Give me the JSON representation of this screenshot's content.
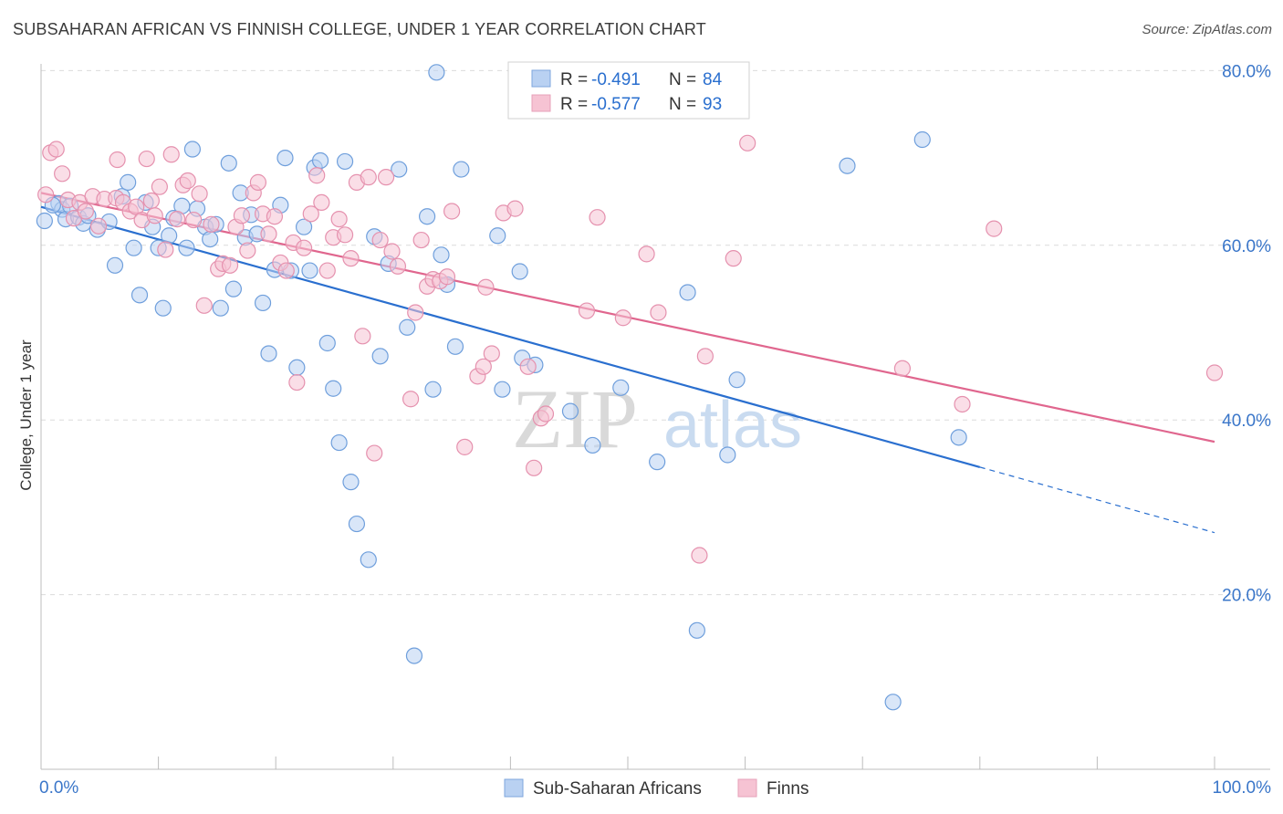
{
  "title": "SUBSAHARAN AFRICAN VS FINNISH COLLEGE, UNDER 1 YEAR CORRELATION CHART",
  "source": "Source: ZipAtlas.com",
  "watermark": {
    "zip": "ZIP",
    "atlas": "atlas"
  },
  "colors": {
    "blue": "#2a6fcf",
    "blue_fill": "#b9d1f2",
    "pink": "#e0668e",
    "pink_fill": "#f6c3d3",
    "tick_label": "#3a76c9",
    "grid": "#dcdcdc"
  },
  "legend_top": {
    "rows": [
      {
        "r_label": "R = ",
        "r_value": "-0.491",
        "n_label": "N = ",
        "n_value": "84",
        "series": "Sub-Saharan Africans"
      },
      {
        "r_label": "R = ",
        "r_value": "-0.577",
        "n_label": "N = ",
        "n_value": "93",
        "series": "Finns"
      }
    ]
  },
  "legend_bottom": [
    "Sub-Saharan Africans",
    "Finns"
  ],
  "chart_data": {
    "type": "scatter",
    "title": "SUBSAHARAN AFRICAN VS FINNISH COLLEGE, UNDER 1 YEAR CORRELATION CHART",
    "xlabel": "",
    "ylabel": "College, Under 1 year",
    "xlim": [
      0,
      100
    ],
    "ylim": [
      0,
      83
    ],
    "x_tick_labels": [
      "0.0%",
      "100.0%"
    ],
    "y_ticks": [
      20,
      40,
      60,
      80
    ],
    "y_tick_labels": [
      "20.0%",
      "40.0%",
      "60.0%",
      "80.0%"
    ],
    "grid": true,
    "series": [
      {
        "name": "Sub-Saharan Africans",
        "r": -0.491,
        "n": 84,
        "trend": {
          "x0": 0,
          "y0": 64.4,
          "x1": 80,
          "y1": 34.6,
          "dash_to_x": 100,
          "dash_to_y": 27.1
        },
        "points": [
          [
            0.3,
            62.8
          ],
          [
            1.5,
            64.8
          ],
          [
            1.8,
            64.1
          ],
          [
            2.1,
            63.0
          ],
          [
            2.5,
            64.5
          ],
          [
            3.2,
            63.2
          ],
          [
            3.6,
            62.5
          ],
          [
            4.0,
            63.4
          ],
          [
            4.8,
            61.8
          ],
          [
            5.8,
            62.7
          ],
          [
            6.3,
            57.7
          ],
          [
            6.9,
            65.6
          ],
          [
            7.4,
            67.2
          ],
          [
            7.9,
            59.7
          ],
          [
            8.4,
            54.3
          ],
          [
            8.9,
            64.9
          ],
          [
            9.5,
            62.1
          ],
          [
            10.0,
            59.7
          ],
          [
            10.4,
            52.8
          ],
          [
            10.9,
            61.1
          ],
          [
            11.3,
            63.1
          ],
          [
            12.0,
            64.5
          ],
          [
            12.4,
            59.7
          ],
          [
            12.9,
            71.0
          ],
          [
            13.3,
            64.2
          ],
          [
            14.0,
            62.1
          ],
          [
            14.4,
            60.7
          ],
          [
            14.9,
            62.4
          ],
          [
            15.3,
            52.8
          ],
          [
            16.0,
            69.4
          ],
          [
            16.4,
            55.0
          ],
          [
            17.0,
            66.0
          ],
          [
            17.4,
            60.9
          ],
          [
            17.9,
            63.5
          ],
          [
            18.4,
            61.3
          ],
          [
            18.9,
            53.4
          ],
          [
            19.4,
            47.6
          ],
          [
            19.9,
            57.2
          ],
          [
            20.4,
            64.6
          ],
          [
            20.8,
            70.0
          ],
          [
            21.3,
            57.1
          ],
          [
            21.8,
            46.0
          ],
          [
            22.4,
            62.1
          ],
          [
            22.9,
            57.1
          ],
          [
            23.3,
            68.9
          ],
          [
            23.8,
            69.7
          ],
          [
            24.4,
            48.8
          ],
          [
            24.9,
            43.6
          ],
          [
            25.4,
            37.4
          ],
          [
            25.9,
            69.6
          ],
          [
            26.4,
            32.9
          ],
          [
            26.9,
            28.1
          ],
          [
            27.9,
            24.0
          ],
          [
            28.4,
            61.0
          ],
          [
            28.9,
            47.3
          ],
          [
            29.6,
            57.9
          ],
          [
            30.5,
            68.7
          ],
          [
            31.2,
            50.6
          ],
          [
            31.8,
            13.0
          ],
          [
            32.9,
            63.3
          ],
          [
            33.4,
            43.5
          ],
          [
            33.7,
            79.8
          ],
          [
            34.1,
            58.9
          ],
          [
            34.6,
            55.5
          ],
          [
            35.3,
            48.4
          ],
          [
            35.8,
            68.7
          ],
          [
            38.9,
            61.1
          ],
          [
            39.3,
            43.5
          ],
          [
            40.8,
            57.0
          ],
          [
            41.0,
            47.1
          ],
          [
            42.1,
            46.3
          ],
          [
            45.1,
            41.0
          ],
          [
            47.0,
            37.1
          ],
          [
            49.4,
            43.7
          ],
          [
            52.5,
            35.2
          ],
          [
            55.1,
            54.6
          ],
          [
            55.9,
            15.9
          ],
          [
            58.5,
            36.0
          ],
          [
            59.3,
            44.6
          ],
          [
            68.7,
            69.1
          ],
          [
            72.6,
            7.7
          ],
          [
            75.1,
            72.1
          ],
          [
            78.2,
            38.0
          ],
          [
            1.0,
            64.6
          ]
        ]
      },
      {
        "name": "Finns",
        "r": -0.577,
        "n": 93,
        "trend": {
          "x0": 0,
          "y0": 66.0,
          "x1": 100,
          "y1": 37.5
        },
        "points": [
          [
            0.4,
            65.8
          ],
          [
            0.8,
            70.6
          ],
          [
            1.3,
            71.0
          ],
          [
            1.8,
            68.2
          ],
          [
            2.3,
            65.2
          ],
          [
            2.8,
            63.1
          ],
          [
            3.3,
            64.9
          ],
          [
            3.8,
            63.9
          ],
          [
            4.4,
            65.6
          ],
          [
            4.9,
            62.2
          ],
          [
            5.4,
            65.3
          ],
          [
            6.4,
            65.4
          ],
          [
            6.5,
            69.8
          ],
          [
            7.0,
            64.9
          ],
          [
            7.6,
            63.9
          ],
          [
            8.1,
            64.4
          ],
          [
            8.6,
            62.9
          ],
          [
            9.0,
            69.9
          ],
          [
            9.4,
            65.1
          ],
          [
            9.7,
            63.4
          ],
          [
            10.1,
            66.7
          ],
          [
            10.6,
            59.5
          ],
          [
            11.1,
            70.4
          ],
          [
            11.6,
            63.0
          ],
          [
            12.1,
            66.9
          ],
          [
            12.5,
            67.4
          ],
          [
            13.0,
            62.9
          ],
          [
            13.5,
            65.9
          ],
          [
            13.9,
            53.1
          ],
          [
            14.5,
            62.4
          ],
          [
            15.1,
            57.3
          ],
          [
            15.5,
            57.9
          ],
          [
            16.1,
            57.7
          ],
          [
            16.6,
            62.1
          ],
          [
            17.1,
            63.4
          ],
          [
            17.6,
            59.4
          ],
          [
            18.1,
            66.0
          ],
          [
            18.5,
            67.2
          ],
          [
            18.9,
            63.6
          ],
          [
            19.4,
            61.3
          ],
          [
            19.9,
            63.3
          ],
          [
            20.4,
            58.0
          ],
          [
            20.9,
            57.1
          ],
          [
            21.5,
            60.3
          ],
          [
            21.8,
            44.3
          ],
          [
            22.4,
            59.7
          ],
          [
            23.0,
            63.6
          ],
          [
            23.5,
            68.0
          ],
          [
            23.9,
            64.9
          ],
          [
            24.4,
            57.1
          ],
          [
            24.9,
            60.9
          ],
          [
            25.4,
            63.0
          ],
          [
            25.9,
            61.2
          ],
          [
            26.4,
            58.5
          ],
          [
            26.9,
            67.2
          ],
          [
            27.4,
            49.6
          ],
          [
            27.9,
            67.8
          ],
          [
            28.4,
            36.2
          ],
          [
            28.9,
            60.6
          ],
          [
            29.4,
            67.8
          ],
          [
            29.9,
            59.3
          ],
          [
            30.4,
            57.6
          ],
          [
            31.5,
            42.4
          ],
          [
            31.9,
            52.3
          ],
          [
            32.4,
            60.6
          ],
          [
            32.9,
            55.3
          ],
          [
            33.4,
            56.1
          ],
          [
            34.0,
            55.9
          ],
          [
            34.6,
            56.4
          ],
          [
            35.0,
            63.9
          ],
          [
            36.1,
            36.9
          ],
          [
            37.2,
            45.0
          ],
          [
            37.7,
            46.1
          ],
          [
            37.9,
            55.2
          ],
          [
            38.4,
            47.6
          ],
          [
            39.4,
            63.7
          ],
          [
            40.4,
            64.2
          ],
          [
            41.5,
            46.1
          ],
          [
            42.0,
            34.5
          ],
          [
            42.6,
            40.2
          ],
          [
            43.0,
            40.7
          ],
          [
            46.5,
            52.5
          ],
          [
            47.4,
            63.2
          ],
          [
            49.6,
            51.7
          ],
          [
            51.6,
            59.0
          ],
          [
            52.6,
            52.3
          ],
          [
            56.1,
            24.5
          ],
          [
            56.6,
            47.3
          ],
          [
            59.0,
            58.5
          ],
          [
            60.2,
            71.7
          ],
          [
            73.4,
            45.9
          ],
          [
            78.5,
            41.8
          ],
          [
            81.2,
            61.9
          ],
          [
            100.0,
            45.4
          ]
        ]
      }
    ]
  }
}
